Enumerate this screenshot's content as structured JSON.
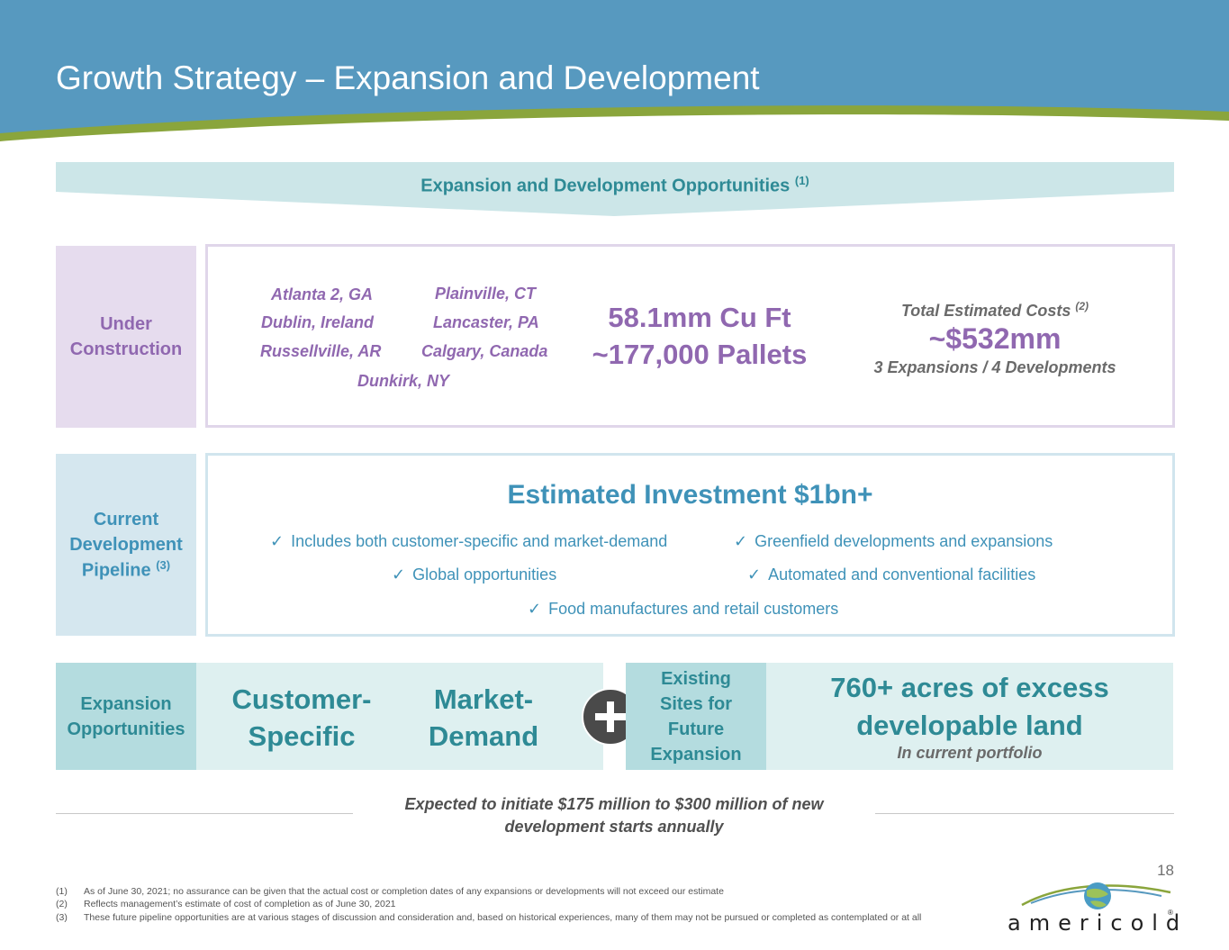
{
  "title": "Growth Strategy – Expansion and Development",
  "banner": {
    "text": "Expansion and Development Opportunities",
    "note": "(1)"
  },
  "under_construction": {
    "label": "Under Construction",
    "locations": [
      "Atlanta 2, GA",
      "Plainville, CT",
      "Dublin, Ireland",
      "Lancaster, PA",
      "Russellville, AR",
      "Calgary, Canada",
      "Dunkirk, NY"
    ],
    "capacity": "58.1mm Cu Ft",
    "pallets": "~177,000 Pallets",
    "costs_label": "Total Estimated Costs",
    "costs_note": "(2)",
    "costs_value": "~$532mm",
    "costs_sub": "3 Expansions / 4 Developments"
  },
  "pipeline": {
    "label": "Current Development Pipeline",
    "note": "(3)",
    "title": "Estimated Investment $1bn+",
    "bullets": [
      "Includes both customer-specific and market-demand",
      "Greenfield developments and expansions",
      "Global opportunities",
      "Automated and conventional facilities",
      "Food manufactures and retail customers"
    ]
  },
  "expansion": {
    "label": "Expansion Opportunities",
    "customer": "Customer-Specific",
    "market": "Market-Demand",
    "sites_label": "Existing Sites for Future Expansion",
    "acres": "760+ acres of excess developable land",
    "acres_sub": "In current portfolio"
  },
  "expected": "Expected to initiate $175 million to $300 million of new development starts annually",
  "page_number": "18",
  "footnotes": [
    {
      "num": "(1)",
      "text": "As of June 30, 2021; no assurance can be given that the actual cost or completion dates of any expansions or developments will not exceed our estimate"
    },
    {
      "num": "(2)",
      "text": "Reflects management’s estimate of cost of completion as of June 30, 2021"
    },
    {
      "num": "(3)",
      "text": "These future pipeline opportunities are at various stages of discussion and consideration and, based on historical experiences, many of them may not be pursued or completed as contemplated or at all"
    }
  ],
  "logo": {
    "text": "americold",
    "reg": "®"
  },
  "colors": {
    "header_blue": "#5799bf",
    "accent_green": "#8aa53c",
    "purple": "#9068b0",
    "blue": "#3f92b8",
    "teal": "#2e8a95"
  }
}
